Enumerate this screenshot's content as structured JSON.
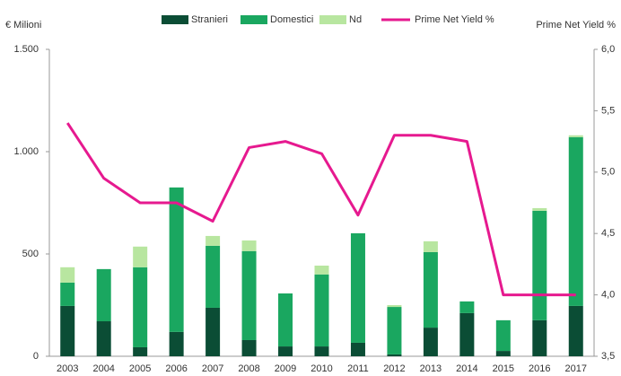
{
  "chart_data": {
    "type": "bar",
    "stacked": true,
    "y_label": "€ Milioni",
    "y2_label": "Prime Net Yield %",
    "categories": [
      "2003",
      "2004",
      "2005",
      "2006",
      "2007",
      "2008",
      "2009",
      "2010",
      "2011",
      "2012",
      "2013",
      "2014",
      "2015",
      "2016",
      "2017"
    ],
    "series": [
      {
        "name": "Stranieri",
        "color": "#0b4d35",
        "values": [
          246,
          171,
          44,
          119,
          237,
          79,
          48,
          48,
          66,
          9,
          140,
          211,
          26,
          176,
          246
        ]
      },
      {
        "name": "Domestici",
        "color": "#1aa760",
        "values": [
          114,
          255,
          391,
          706,
          303,
          435,
          259,
          352,
          535,
          232,
          369,
          57,
          150,
          535,
          825
        ]
      },
      {
        "name": "Nd",
        "color": "#b8e6a0",
        "values": [
          75,
          0,
          101,
          0,
          48,
          52,
          0,
          43,
          0,
          9,
          53,
          0,
          0,
          13,
          9
        ]
      },
      {
        "name": "Prime Net Yield %",
        "color": "#e6198f",
        "type": "line",
        "axis": "y2",
        "values": [
          5.4,
          4.95,
          4.75,
          4.75,
          4.6,
          5.2,
          5.25,
          5.15,
          4.65,
          5.3,
          5.3,
          5.25,
          4.0,
          4.0,
          4.0
        ]
      }
    ],
    "ylim": [
      0,
      1500
    ],
    "yticks": [
      0,
      500,
      {
        "value": 1000,
        "label": "1.000"
      },
      {
        "value": 1500,
        "label": "1.500"
      }
    ],
    "y2lim": [
      3.5,
      6.0
    ],
    "y2ticks": [
      {
        "value": 3.5,
        "label": "3,5"
      },
      {
        "value": 4.0,
        "label": "4,0"
      },
      {
        "value": 4.5,
        "label": "4,5"
      },
      {
        "value": 5.0,
        "label": "5,0"
      },
      {
        "value": 5.5,
        "label": "5,5"
      },
      {
        "value": 6.0,
        "label": "6,0"
      }
    ],
    "legend": "top"
  }
}
